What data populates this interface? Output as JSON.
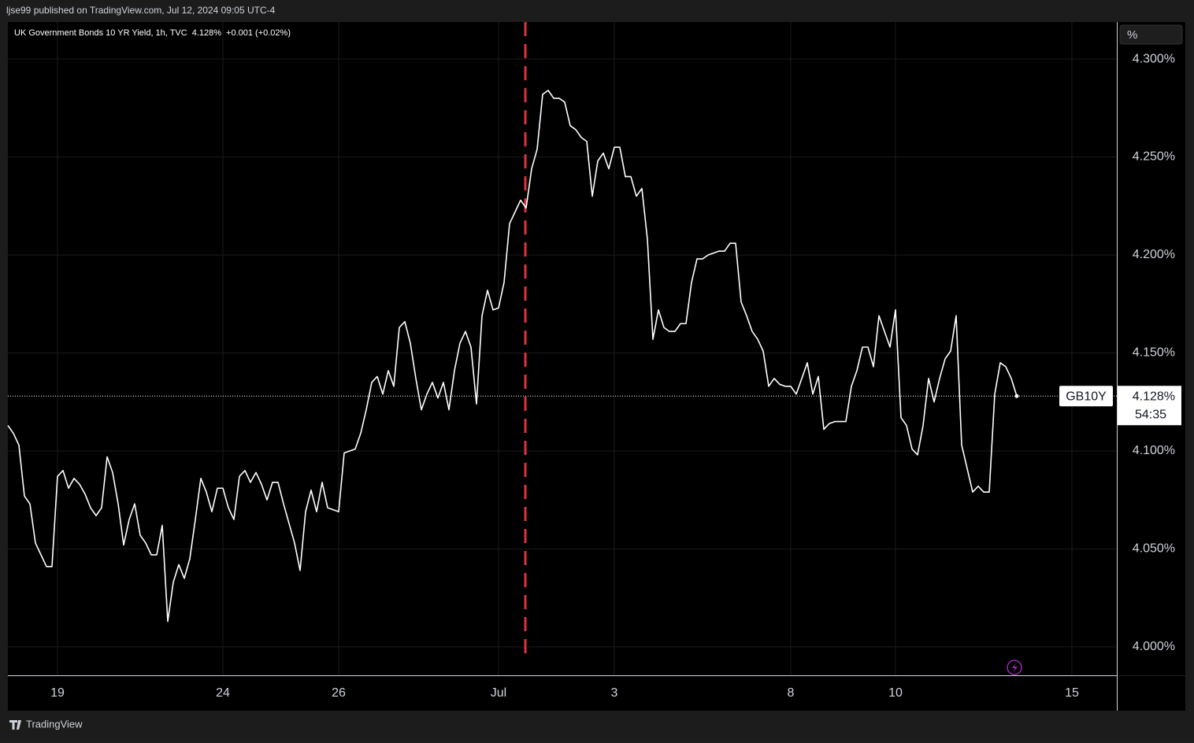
{
  "header": "ljse99 published on TradingView.com, Jul 12, 2024 09:05 UTC-4",
  "footer": "TradingView",
  "chart_data": {
    "type": "line",
    "title": "UK Government Bonds 10 YR Yield, 1h, TVC",
    "legend_values": [
      "4.128%",
      "+0.001 (+0.02%)"
    ],
    "y_unit": "%",
    "symbol": "GB10Y",
    "last_label": "4.128%",
    "countdown": "54:35",
    "color": "#ffffff",
    "grid": true,
    "ylim": [
      3.9855,
      4.3189
    ],
    "yticks": [
      {
        "value": 4.0,
        "label": "4.000%"
      },
      {
        "value": 4.05,
        "label": "4.050%"
      },
      {
        "value": 4.1,
        "label": "4.100%"
      },
      {
        "value": 4.15,
        "label": "4.150%"
      },
      {
        "value": 4.2,
        "label": "4.200%"
      },
      {
        "value": 4.25,
        "label": "4.250%"
      },
      {
        "value": 4.3,
        "label": "4.300%"
      }
    ],
    "categories": [
      null,
      null,
      null,
      null,
      null,
      null,
      null,
      null,
      null,
      "19",
      null,
      null,
      null,
      null,
      null,
      null,
      null,
      null,
      null,
      null,
      null,
      null,
      null,
      null,
      null,
      null,
      null,
      null,
      null,
      null,
      null,
      null,
      null,
      null,
      null,
      null,
      null,
      null,
      null,
      "24",
      null,
      null,
      null,
      null,
      null,
      null,
      null,
      null,
      null,
      null,
      null,
      null,
      null,
      null,
      null,
      null,
      null,
      null,
      null,
      null,
      "26",
      null,
      null,
      null,
      null,
      null,
      null,
      null,
      null,
      null,
      null,
      null,
      null,
      null,
      null,
      null,
      null,
      null,
      null,
      null,
      null,
      null,
      null,
      null,
      null,
      null,
      null,
      null,
      null,
      "Jul",
      null,
      null,
      null,
      null,
      null,
      null,
      null,
      null,
      null,
      null,
      null,
      null,
      null,
      null,
      null,
      null,
      null,
      null,
      null,
      null,
      "3",
      null,
      null,
      null,
      null,
      null,
      null,
      null,
      null,
      null,
      null,
      null,
      null,
      null,
      null,
      null,
      null,
      null,
      null,
      null,
      null,
      null,
      null,
      null,
      null,
      null,
      null,
      null,
      null,
      null,
      null,
      null,
      "8",
      null,
      null,
      null,
      null,
      null,
      null,
      null,
      null,
      null,
      null,
      null,
      null,
      null,
      null,
      null,
      null,
      null,
      null,
      "10",
      null,
      null,
      null,
      null,
      null,
      null,
      null,
      null,
      null,
      null,
      null,
      null,
      null,
      null,
      null,
      null,
      null,
      null,
      null,
      null,
      null,
      null,
      null,
      null,
      null,
      null,
      null,
      null,
      null,
      null,
      null,
      "15",
      null,
      null,
      null,
      null,
      null,
      null,
      null,
      null
    ],
    "values": [
      4.113,
      4.109,
      4.103,
      4.077,
      4.073,
      4.053,
      4.047,
      4.041,
      4.041,
      4.087,
      4.09,
      4.081,
      4.086,
      4.083,
      4.078,
      4.071,
      4.067,
      4.071,
      4.097,
      4.089,
      4.073,
      4.052,
      4.065,
      4.073,
      4.057,
      4.053,
      4.047,
      4.047,
      4.062,
      4.013,
      4.033,
      4.042,
      4.035,
      4.045,
      4.065,
      4.086,
      4.079,
      4.069,
      4.081,
      4.081,
      4.071,
      4.065,
      4.087,
      4.09,
      4.084,
      4.089,
      4.083,
      4.075,
      4.084,
      4.084,
      4.073,
      4.063,
      4.053,
      4.039,
      4.069,
      4.08,
      4.069,
      4.084,
      4.071,
      4.07,
      4.069,
      4.099,
      4.1,
      4.101,
      4.109,
      4.121,
      4.135,
      4.138,
      4.129,
      4.141,
      4.133,
      4.163,
      4.166,
      4.155,
      4.137,
      4.121,
      4.129,
      4.135,
      4.127,
      4.135,
      4.121,
      4.141,
      4.155,
      4.161,
      4.153,
      4.124,
      4.169,
      4.182,
      4.172,
      4.173,
      4.186,
      4.216,
      4.222,
      4.228,
      4.224,
      4.244,
      4.254,
      4.282,
      4.284,
      4.28,
      4.28,
      4.278,
      4.266,
      4.264,
      4.26,
      4.258,
      4.23,
      4.248,
      4.252,
      4.244,
      4.255,
      4.255,
      4.24,
      4.24,
      4.23,
      4.234,
      4.208,
      4.157,
      4.172,
      4.163,
      4.161,
      4.161,
      4.165,
      4.165,
      4.186,
      4.198,
      4.198,
      4.2,
      4.201,
      4.202,
      4.202,
      4.206,
      4.206,
      4.176,
      4.169,
      4.161,
      4.157,
      4.151,
      4.133,
      4.137,
      4.134,
      4.133,
      4.133,
      4.129,
      4.137,
      4.145,
      4.129,
      4.138,
      4.111,
      4.114,
      4.115,
      4.115,
      4.115,
      4.133,
      4.141,
      4.153,
      4.153,
      4.143,
      4.169,
      4.161,
      4.153,
      4.172,
      4.117,
      4.113,
      4.101,
      4.098,
      4.113,
      4.137,
      4.125,
      4.137,
      4.147,
      4.151,
      4.169,
      4.103,
      4.091,
      4.079,
      4.082,
      4.079,
      4.079,
      4.129,
      4.145,
      4.143,
      4.137,
      4.128,
      null,
      null,
      null,
      null,
      null,
      null,
      null,
      null,
      null,
      null,
      null,
      null,
      null,
      null,
      null,
      null,
      null,
      null
    ]
  }
}
